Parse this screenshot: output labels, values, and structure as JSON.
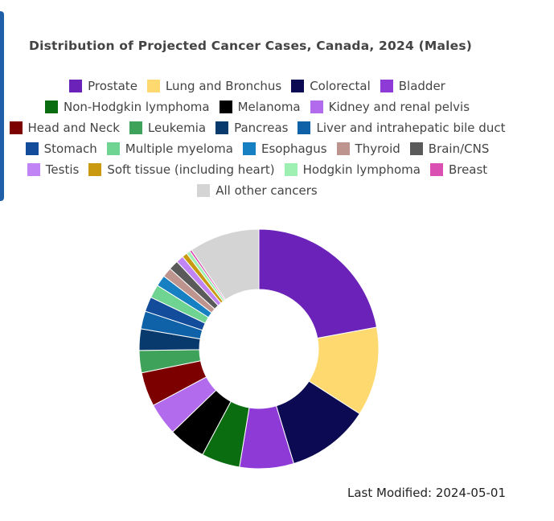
{
  "chart_data": {
    "type": "pie",
    "title": "Distribution of Projected Cancer Cases, Canada, 2024 (Males)",
    "legend_placement": "top",
    "hole": true,
    "slices": [
      {
        "label": "Prostate",
        "value": 22.1,
        "color": "#6a22b8"
      },
      {
        "label": "Lung and Bronchus",
        "value": 12.0,
        "color": "#fdd96f"
      },
      {
        "label": "Colorectal",
        "value": 11.2,
        "color": "#0b0a52"
      },
      {
        "label": "Bladder",
        "value": 7.3,
        "color": "#8e3ad6"
      },
      {
        "label": "Non-Hodgkin lymphoma",
        "value": 5.2,
        "color": "#0a6e10"
      },
      {
        "label": "Melanoma",
        "value": 5.0,
        "color": "#000000"
      },
      {
        "label": "Kidney and renal pelvis",
        "value": 4.4,
        "color": "#b36bed"
      },
      {
        "label": "Head and Neck",
        "value": 4.6,
        "color": "#7d0000"
      },
      {
        "label": "Leukemia",
        "value": 3.0,
        "color": "#3ea25a"
      },
      {
        "label": "Pancreas",
        "value": 2.9,
        "color": "#083a6e"
      },
      {
        "label": "Liver and intrahepatic bile duct",
        "value": 2.4,
        "color": "#0f62a8"
      },
      {
        "label": "Stomach",
        "value": 2.0,
        "color": "#124c9a"
      },
      {
        "label": "Multiple myeloma",
        "value": 1.8,
        "color": "#6fd391"
      },
      {
        "label": "Esophagus",
        "value": 1.5,
        "color": "#1780c2"
      },
      {
        "label": "Thyroid",
        "value": 1.3,
        "color": "#bd958e"
      },
      {
        "label": "Brain/CNS",
        "value": 1.3,
        "color": "#5a5a5a"
      },
      {
        "label": "Testis",
        "value": 1.0,
        "color": "#c084f5"
      },
      {
        "label": "Soft tissue (including heart)",
        "value": 0.7,
        "color": "#c99a0f"
      },
      {
        "label": "Hodgkin lymphoma",
        "value": 0.5,
        "color": "#9ef0b2"
      },
      {
        "label": "Breast",
        "value": 0.3,
        "color": "#d94fb2"
      },
      {
        "label": "All other cancers",
        "value": 9.5,
        "color": "#d4d4d4"
      }
    ]
  },
  "legend_rows": [
    [
      0,
      1,
      2,
      3
    ],
    [
      4,
      5,
      6
    ],
    [
      7,
      8,
      9,
      10
    ],
    [
      11,
      12,
      13,
      14,
      15
    ],
    [
      16,
      17,
      18,
      19
    ],
    [
      20
    ]
  ],
  "footer": {
    "last_modified": "Last Modified: 2024-05-01"
  }
}
